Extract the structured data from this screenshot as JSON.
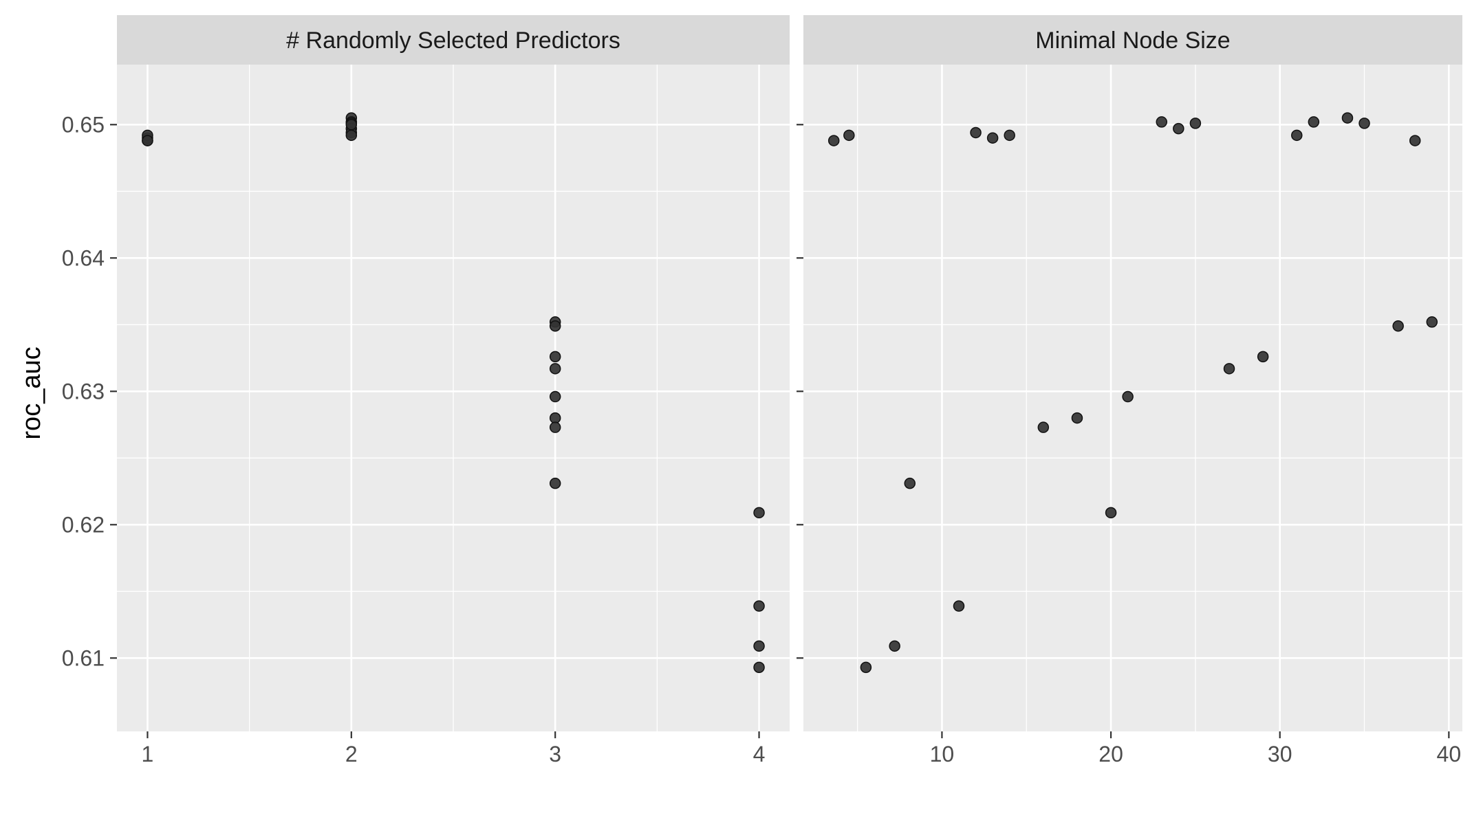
{
  "chart_data": {
    "type": "scatter",
    "ylabel": "roc_auc",
    "ylim": [
      0.6045,
      0.6545
    ],
    "y_ticks": [
      0.61,
      0.62,
      0.63,
      0.64,
      0.65
    ],
    "y_tick_labels": [
      "0.61",
      "0.62",
      "0.63",
      "0.64",
      "0.65"
    ],
    "grid": true,
    "point_color": "#333333",
    "panel_background": "#EBEBEB",
    "strip_background": "#D9D9D9",
    "panels": [
      {
        "title": "# Randomly Selected Predictors",
        "xlim": [
          0.85,
          4.15
        ],
        "x_ticks": [
          1,
          2,
          3,
          4
        ],
        "x_tick_labels": [
          "1",
          "2",
          "3",
          "4"
        ],
        "points": [
          {
            "x": 1,
            "y": 0.6488
          },
          {
            "x": 1,
            "y": 0.649
          },
          {
            "x": 1,
            "y": 0.6492
          },
          {
            "x": 1,
            "y": 0.6488
          },
          {
            "x": 2,
            "y": 0.6505
          },
          {
            "x": 2,
            "y": 0.6502
          },
          {
            "x": 2,
            "y": 0.6501
          },
          {
            "x": 2,
            "y": 0.6497
          },
          {
            "x": 2,
            "y": 0.6494
          },
          {
            "x": 2,
            "y": 0.6492
          },
          {
            "x": 2,
            "y": 0.65
          },
          {
            "x": 3,
            "y": 0.6352
          },
          {
            "x": 3,
            "y": 0.6349
          },
          {
            "x": 3,
            "y": 0.6326
          },
          {
            "x": 3,
            "y": 0.6317
          },
          {
            "x": 3,
            "y": 0.6296
          },
          {
            "x": 3,
            "y": 0.628
          },
          {
            "x": 3,
            "y": 0.6273
          },
          {
            "x": 3,
            "y": 0.6231
          },
          {
            "x": 4,
            "y": 0.6209
          },
          {
            "x": 4,
            "y": 0.6139
          },
          {
            "x": 4,
            "y": 0.6109
          },
          {
            "x": 4,
            "y": 0.6093
          }
        ]
      },
      {
        "title": "Minimal Node Size",
        "xlim": [
          1.8,
          40.8
        ],
        "x_ticks": [
          10,
          20,
          30,
          40
        ],
        "x_tick_labels": [
          "10",
          "20",
          "30",
          "40"
        ],
        "points": [
          {
            "x": 3.6,
            "y": 0.6488
          },
          {
            "x": 4.5,
            "y": 0.6492
          },
          {
            "x": 5.5,
            "y": 0.6093
          },
          {
            "x": 7.2,
            "y": 0.6109
          },
          {
            "x": 8.1,
            "y": 0.6231
          },
          {
            "x": 11.0,
            "y": 0.6139
          },
          {
            "x": 12.0,
            "y": 0.6494
          },
          {
            "x": 13.0,
            "y": 0.649
          },
          {
            "x": 14.0,
            "y": 0.6492
          },
          {
            "x": 16.0,
            "y": 0.6273
          },
          {
            "x": 18.0,
            "y": 0.628
          },
          {
            "x": 20.0,
            "y": 0.6209
          },
          {
            "x": 21.0,
            "y": 0.6296
          },
          {
            "x": 23.0,
            "y": 0.6502
          },
          {
            "x": 24.0,
            "y": 0.6497
          },
          {
            "x": 25.0,
            "y": 0.6501
          },
          {
            "x": 27.0,
            "y": 0.6317
          },
          {
            "x": 29.0,
            "y": 0.6326
          },
          {
            "x": 31.0,
            "y": 0.6492
          },
          {
            "x": 32.0,
            "y": 0.6502
          },
          {
            "x": 34.0,
            "y": 0.6505
          },
          {
            "x": 35.0,
            "y": 0.6501
          },
          {
            "x": 37.0,
            "y": 0.6349
          },
          {
            "x": 38.0,
            "y": 0.6488
          },
          {
            "x": 39.0,
            "y": 0.6352
          }
        ]
      }
    ]
  }
}
